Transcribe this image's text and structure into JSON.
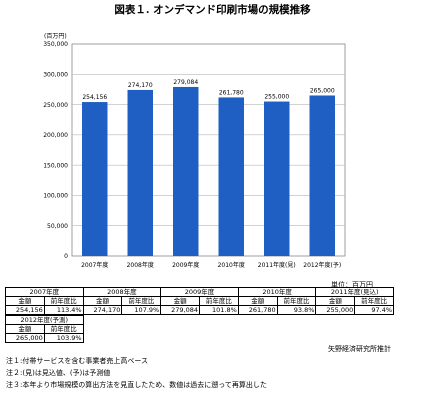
{
  "title": "図表１. オンデマンド印刷市場の規模推移",
  "chart_data": {
    "type": "bar",
    "unit": "(百万円)",
    "categories": [
      "2007年度",
      "2008年度",
      "2009年度",
      "2010年度",
      "2011年度(見)",
      "2012年度(予)"
    ],
    "values": [
      254156,
      274170,
      279084,
      261780,
      255000,
      265000
    ],
    "value_labels": [
      "254,156",
      "274,170",
      "279,084",
      "261,780",
      "255,000",
      "265,000"
    ],
    "ylim": [
      0,
      350000
    ],
    "yticks": [
      0,
      50000,
      100000,
      150000,
      200000,
      250000,
      300000,
      350000
    ],
    "ytick_labels": [
      "0",
      "50,000",
      "100,000",
      "150,000",
      "200,000",
      "250,000",
      "300,000",
      "350,000"
    ],
    "grid": true,
    "bar_color": "#1f5fc4"
  },
  "table": {
    "unit_note": "単位：百万円",
    "col_amount": "金額",
    "col_ratio": "前年度比",
    "row1": [
      {
        "year": "2007年度",
        "amount": "254,156",
        "ratio": "113.4%"
      },
      {
        "year": "2008年度",
        "amount": "274,170",
        "ratio": "107.9%"
      },
      {
        "year": "2009年度",
        "amount": "279,084",
        "ratio": "101.8%"
      },
      {
        "year": "2010年度",
        "amount": "261,780",
        "ratio": "93.8%"
      },
      {
        "year": "2011年度(見込)",
        "amount": "255,000",
        "ratio": "97.4%"
      }
    ],
    "row2": [
      {
        "year": "2012年度(予測)",
        "amount": "265,000",
        "ratio": "103.9%"
      }
    ]
  },
  "author": "矢野経済研究所推計",
  "notes": [
    "注１:付帯サービスを含む事業者売上高ベース",
    "注２:(見)は見込値、(予)は予測値",
    "注３:本年より市場規模の算出方法を見直したため、数値は過去に遡って再算出した"
  ]
}
